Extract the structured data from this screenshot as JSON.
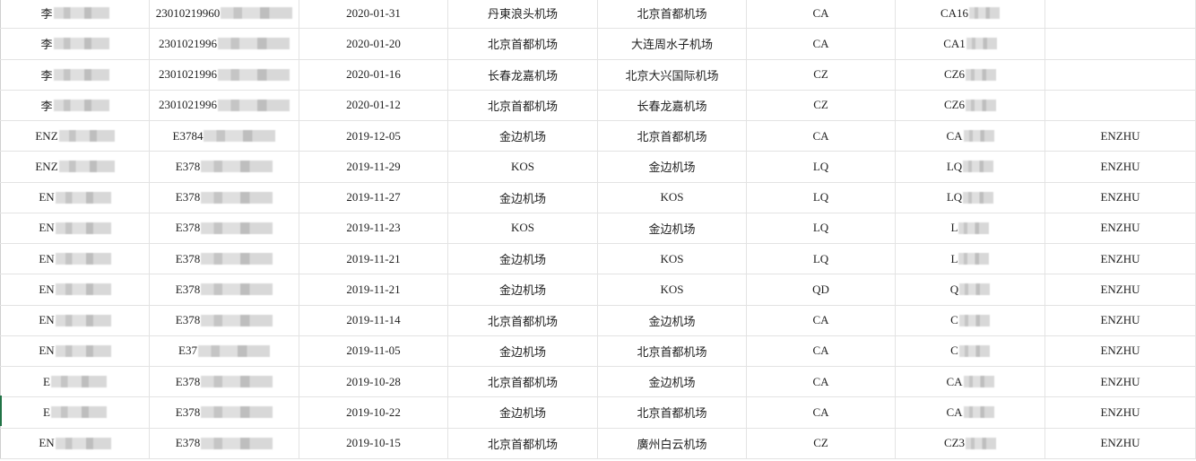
{
  "sheet": {
    "columns": 8,
    "accent_color": "#217346",
    "rows": [
      {
        "cells": [
          {
            "t": "李",
            "blur": true
          },
          {
            "t": "23010219960",
            "blur": true
          },
          {
            "t": "2020-01-31"
          },
          {
            "t": "丹東浪头机场"
          },
          {
            "t": "北京首都机场"
          },
          {
            "t": "CA"
          },
          {
            "t": "CA16",
            "blur": true
          },
          {
            "t": ""
          }
        ]
      },
      {
        "cells": [
          {
            "t": "李",
            "blur": true
          },
          {
            "t": "2301021996",
            "blur": true
          },
          {
            "t": "2020-01-20"
          },
          {
            "t": "北京首都机场"
          },
          {
            "t": "大连周水子机场"
          },
          {
            "t": "CA"
          },
          {
            "t": "CA1",
            "blur": true
          },
          {
            "t": ""
          }
        ]
      },
      {
        "cells": [
          {
            "t": "李",
            "blur": true
          },
          {
            "t": "2301021996",
            "blur": true
          },
          {
            "t": "2020-01-16"
          },
          {
            "t": "长春龙嘉机场"
          },
          {
            "t": "北京大兴国际机场"
          },
          {
            "t": "CZ"
          },
          {
            "t": "CZ6",
            "blur": true
          },
          {
            "t": ""
          }
        ]
      },
      {
        "cells": [
          {
            "t": "李",
            "blur": true
          },
          {
            "t": "2301021996",
            "blur": true
          },
          {
            "t": "2020-01-12"
          },
          {
            "t": "北京首都机场"
          },
          {
            "t": "长春龙嘉机场"
          },
          {
            "t": "CZ"
          },
          {
            "t": "CZ6",
            "blur": true
          },
          {
            "t": ""
          }
        ]
      },
      {
        "cells": [
          {
            "t": "ENZ",
            "blur": true
          },
          {
            "t": "E3784",
            "blur": true
          },
          {
            "t": "2019-12-05"
          },
          {
            "t": "金边机场"
          },
          {
            "t": "北京首都机场"
          },
          {
            "t": "CA"
          },
          {
            "t": "CA",
            "blur": true
          },
          {
            "t": "ENZHU"
          }
        ]
      },
      {
        "cells": [
          {
            "t": "ENZ",
            "blur": true
          },
          {
            "t": "E378",
            "blur": true
          },
          {
            "t": "2019-11-29"
          },
          {
            "t": "KOS"
          },
          {
            "t": "金边机场"
          },
          {
            "t": "LQ"
          },
          {
            "t": "LQ",
            "blur": true
          },
          {
            "t": "ENZHU"
          }
        ]
      },
      {
        "cells": [
          {
            "t": "EN",
            "blur": true
          },
          {
            "t": "E378",
            "blur": true
          },
          {
            "t": "2019-11-27"
          },
          {
            "t": "金边机场"
          },
          {
            "t": "KOS"
          },
          {
            "t": "LQ"
          },
          {
            "t": "LQ",
            "blur": true
          },
          {
            "t": "ENZHU"
          }
        ]
      },
      {
        "cells": [
          {
            "t": "EN",
            "blur": true
          },
          {
            "t": "E378",
            "blur": true
          },
          {
            "t": "2019-11-23"
          },
          {
            "t": "KOS"
          },
          {
            "t": "金边机场"
          },
          {
            "t": "LQ"
          },
          {
            "t": "L",
            "blur": true
          },
          {
            "t": "ENZHU"
          }
        ]
      },
      {
        "cells": [
          {
            "t": "EN",
            "blur": true
          },
          {
            "t": "E378",
            "blur": true
          },
          {
            "t": "2019-11-21"
          },
          {
            "t": "金边机场"
          },
          {
            "t": "KOS"
          },
          {
            "t": "LQ"
          },
          {
            "t": "L",
            "blur": true
          },
          {
            "t": "ENZHU"
          }
        ]
      },
      {
        "cells": [
          {
            "t": "EN",
            "blur": true
          },
          {
            "t": "E378",
            "blur": true
          },
          {
            "t": "2019-11-21"
          },
          {
            "t": "金边机场"
          },
          {
            "t": "KOS"
          },
          {
            "t": "QD"
          },
          {
            "t": "Q",
            "blur": true
          },
          {
            "t": "ENZHU"
          }
        ]
      },
      {
        "cells": [
          {
            "t": "EN",
            "blur": true
          },
          {
            "t": "E378",
            "blur": true
          },
          {
            "t": "2019-11-14"
          },
          {
            "t": "北京首都机场"
          },
          {
            "t": "金边机场"
          },
          {
            "t": "CA"
          },
          {
            "t": "C",
            "blur": true
          },
          {
            "t": "ENZHU"
          }
        ]
      },
      {
        "cells": [
          {
            "t": "EN",
            "blur": true
          },
          {
            "t": "E37",
            "blur": true
          },
          {
            "t": "2019-11-05"
          },
          {
            "t": "金边机场"
          },
          {
            "t": "北京首都机场"
          },
          {
            "t": "CA"
          },
          {
            "t": "C",
            "blur": true
          },
          {
            "t": "ENZHU"
          }
        ]
      },
      {
        "cells": [
          {
            "t": "E",
            "blur": true
          },
          {
            "t": "E378",
            "blur": true
          },
          {
            "t": "2019-10-28"
          },
          {
            "t": "北京首都机场"
          },
          {
            "t": "金边机场"
          },
          {
            "t": "CA"
          },
          {
            "t": "CA",
            "blur": true
          },
          {
            "t": "ENZHU"
          }
        ]
      },
      {
        "cells": [
          {
            "t": "E",
            "blur": true
          },
          {
            "t": "E378",
            "blur": true
          },
          {
            "t": "2019-10-22"
          },
          {
            "t": "金边机场"
          },
          {
            "t": "北京首都机场"
          },
          {
            "t": "CA"
          },
          {
            "t": "CA",
            "blur": true
          },
          {
            "t": "ENZHU"
          }
        ]
      },
      {
        "cells": [
          {
            "t": "EN",
            "blur": true
          },
          {
            "t": "E378",
            "blur": true
          },
          {
            "t": "2019-10-15"
          },
          {
            "t": "北京首都机场"
          },
          {
            "t": "廣州白云机场"
          },
          {
            "t": "CZ"
          },
          {
            "t": "CZ3",
            "blur": true
          },
          {
            "t": "ENZHU"
          }
        ]
      }
    ]
  }
}
